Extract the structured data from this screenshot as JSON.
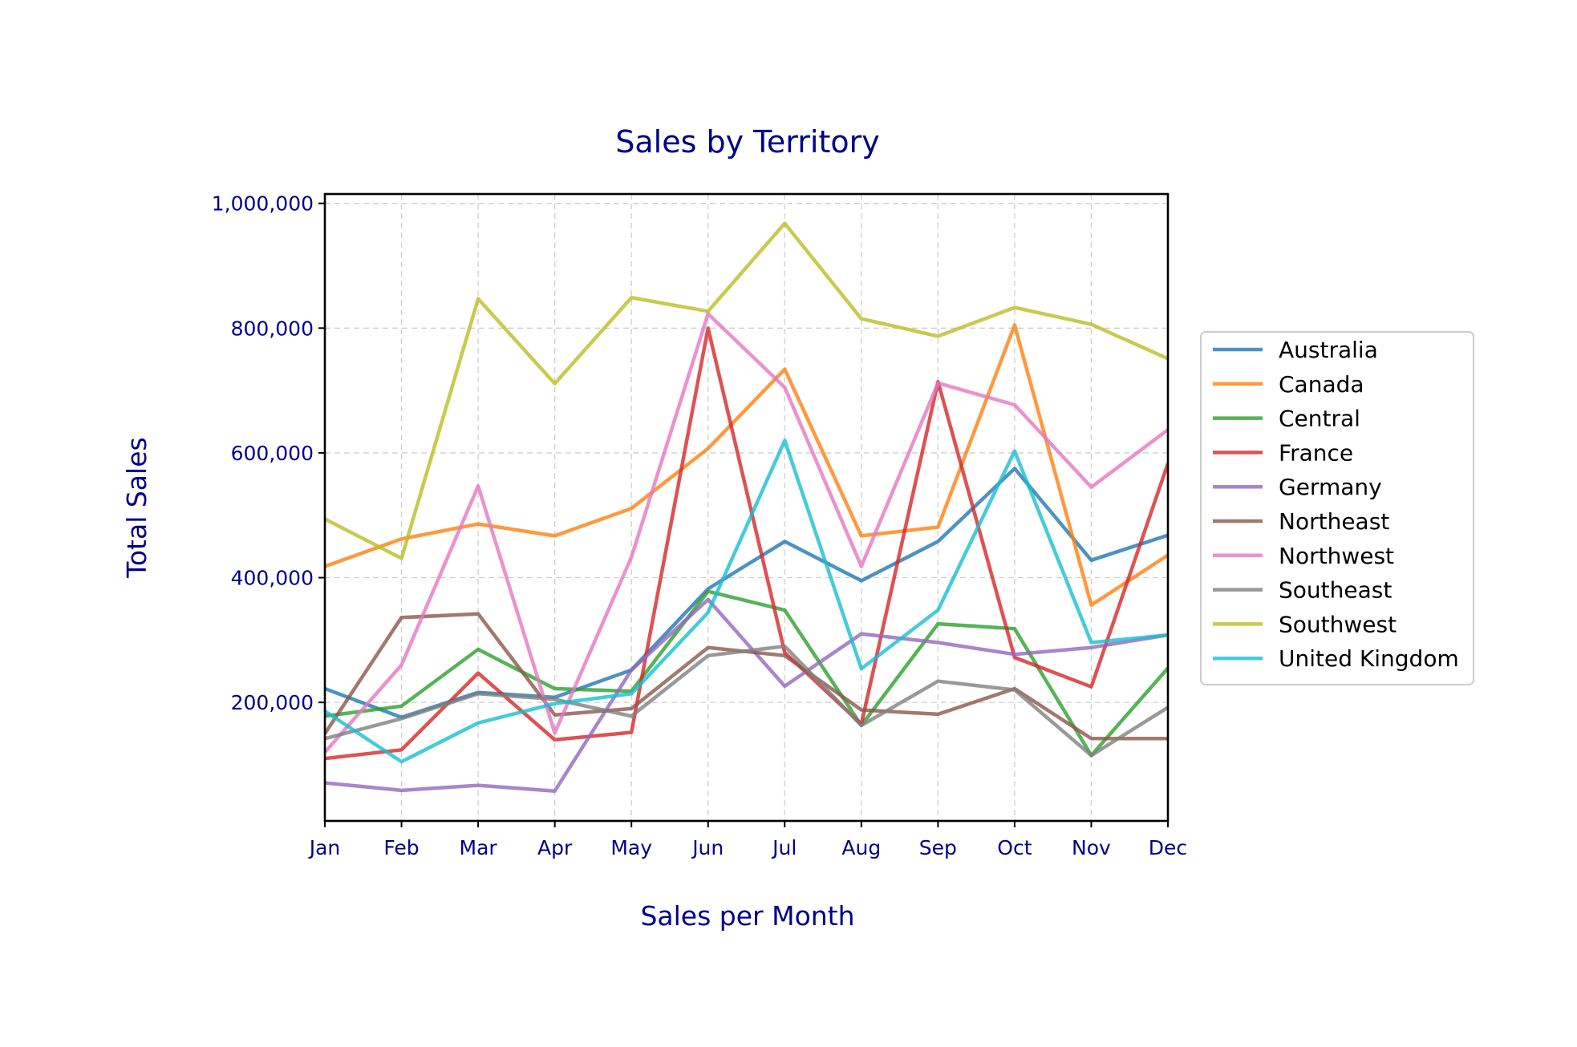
{
  "chart_data": {
    "type": "line",
    "title": "Sales by Territory",
    "xlabel": "Sales per Month",
    "ylabel": "Total Sales",
    "categories": [
      "Jan",
      "Feb",
      "Mar",
      "Apr",
      "May",
      "Jun",
      "Jul",
      "Aug",
      "Sep",
      "Oct",
      "Nov",
      "Dec"
    ],
    "ylim": [
      10000,
      1015000
    ],
    "yticks": [
      200000,
      400000,
      600000,
      800000,
      1000000
    ],
    "ytick_labels": [
      "200,000",
      "400,000",
      "600,000",
      "800,000",
      "1,000,000"
    ],
    "grid": true,
    "legend_position": "center-right, outside plot",
    "colors": {
      "text": "#00008b",
      "legend_text": "#000000",
      "axis": "#000000",
      "grid": "#cfcfcf"
    },
    "series": [
      {
        "name": "Australia",
        "color": "#1f77b4",
        "values": [
          222000,
          176000,
          216000,
          208000,
          252000,
          382000,
          458000,
          395000,
          458000,
          575000,
          428000,
          468000
        ]
      },
      {
        "name": "Canada",
        "color": "#ff7f0e",
        "values": [
          418000,
          462000,
          486000,
          467000,
          511000,
          607000,
          734000,
          467000,
          481000,
          805000,
          356000,
          436000
        ]
      },
      {
        "name": "Central",
        "color": "#2ca02c",
        "values": [
          178000,
          194000,
          285000,
          222000,
          218000,
          378000,
          348000,
          163000,
          326000,
          318000,
          115000,
          255000
        ]
      },
      {
        "name": "France",
        "color": "#d62728",
        "values": [
          110000,
          124000,
          247000,
          140000,
          152000,
          800000,
          280000,
          165000,
          714000,
          272000,
          225000,
          583000
        ]
      },
      {
        "name": "Germany",
        "color": "#9467bd",
        "values": [
          71000,
          59000,
          67000,
          58000,
          252000,
          365000,
          226000,
          310000,
          296000,
          277000,
          288000,
          308000
        ]
      },
      {
        "name": "Northeast",
        "color": "#8c564b",
        "values": [
          150000,
          336000,
          342000,
          180000,
          190000,
          288000,
          275000,
          188000,
          181000,
          222000,
          142000,
          142000
        ]
      },
      {
        "name": "Northwest",
        "color": "#e377c2",
        "values": [
          120000,
          260000,
          547000,
          151000,
          433000,
          823000,
          705000,
          418000,
          712000,
          677000,
          545000,
          637000
        ]
      },
      {
        "name": "Southeast",
        "color": "#7f7f7f",
        "values": [
          142000,
          174000,
          214000,
          205000,
          178000,
          275000,
          290000,
          163000,
          234000,
          220000,
          115000,
          192000
        ]
      },
      {
        "name": "Southwest",
        "color": "#bcbd22",
        "values": [
          494000,
          431000,
          847000,
          711000,
          849000,
          827000,
          968000,
          815000,
          787000,
          833000,
          806000,
          751000
        ]
      },
      {
        "name": "United Kingdom",
        "color": "#17becf",
        "values": [
          186000,
          105000,
          167000,
          198000,
          214000,
          344000,
          620000,
          254000,
          348000,
          603000,
          296000,
          308000
        ]
      }
    ]
  }
}
